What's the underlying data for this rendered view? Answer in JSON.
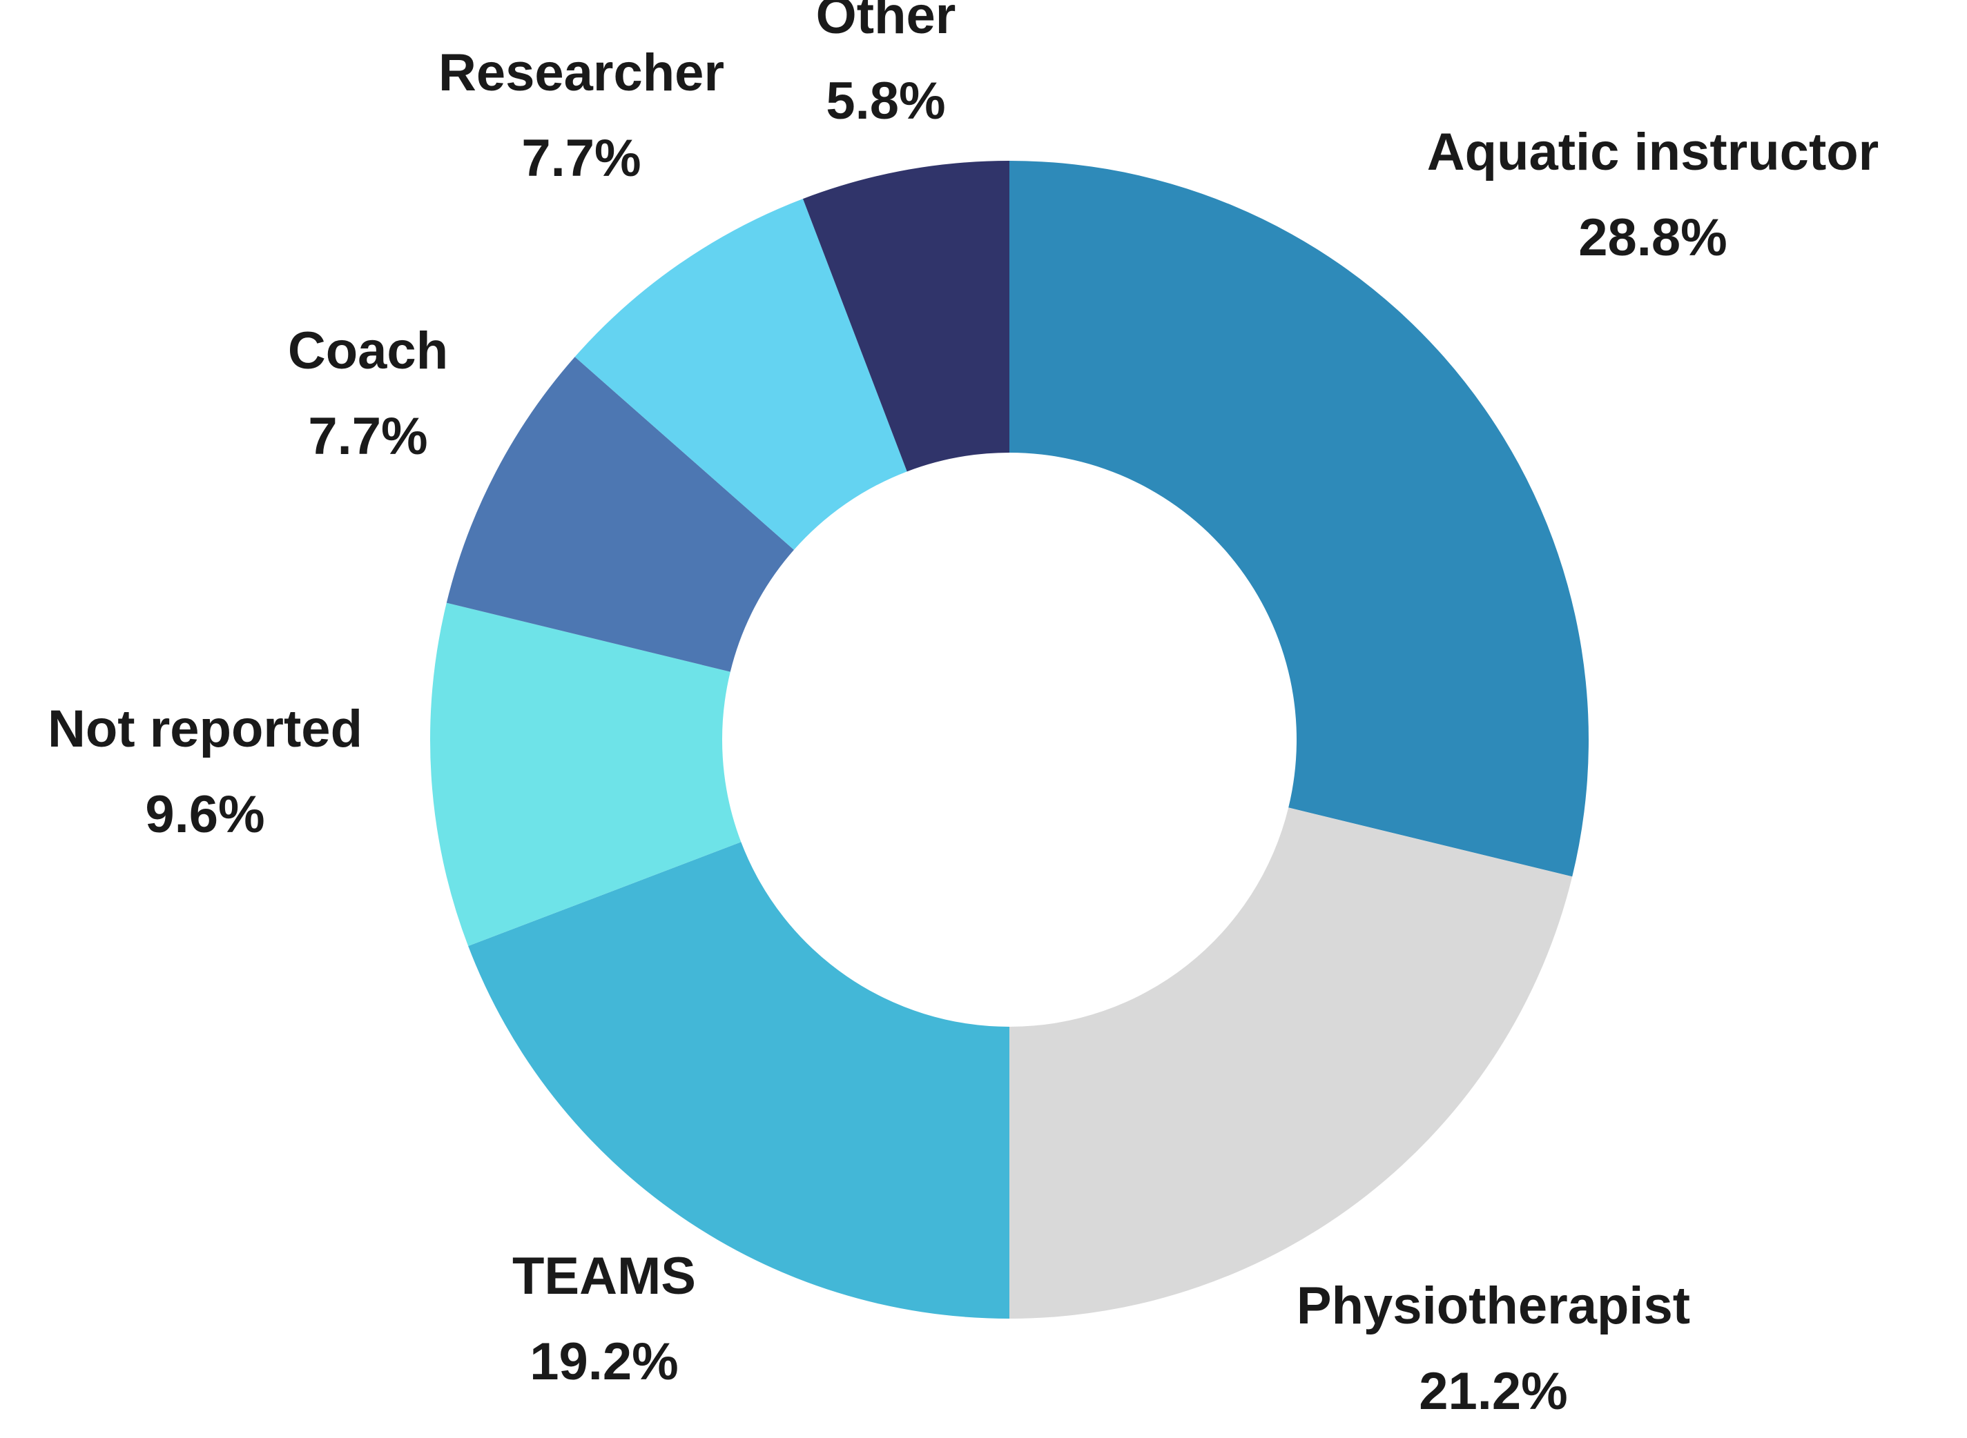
{
  "chart_data": {
    "type": "pie",
    "variant": "donut",
    "title": "",
    "start": "12 o'clock, clockwise",
    "slices": [
      {
        "label": "Aquatic instructor",
        "value": 28.8,
        "value_label": "28.8%",
        "color": "#2E8AB9"
      },
      {
        "label": "Physiotherapist",
        "value": 21.2,
        "value_label": "21.2%",
        "color": "#D9D9D9"
      },
      {
        "label": "TEAMS",
        "value": 19.2,
        "value_label": "19.2%",
        "color": "#43B7D7"
      },
      {
        "label": "Not reported",
        "value": 9.6,
        "value_label": "9.6%",
        "color": "#6EE3E8"
      },
      {
        "label": "Coach",
        "value": 7.7,
        "value_label": "7.7%",
        "color": "#4D77B2"
      },
      {
        "label": "Researcher",
        "value": 7.7,
        "value_label": "7.7%",
        "color": "#64D3F1"
      },
      {
        "label": "Other",
        "value": 5.8,
        "value_label": "5.8%",
        "color": "#30346A"
      }
    ]
  }
}
